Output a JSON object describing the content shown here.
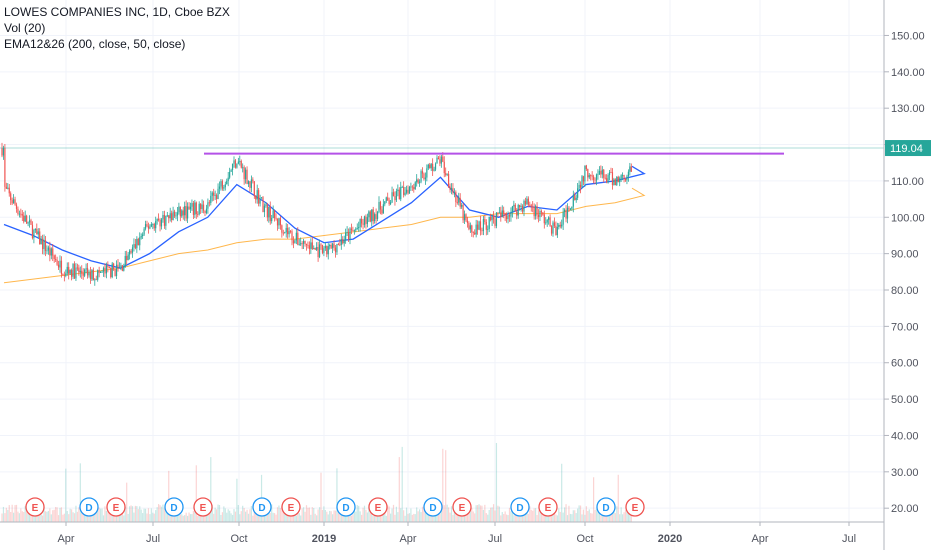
{
  "legend": {
    "symbol_line": "LOWES COMPANIES INC, 1D, Cboe BZX",
    "vol_line": "Vol (20)",
    "ema_line": "EMA12&26 (200, close, 50, close)"
  },
  "price_tag": "119.04",
  "colors": {
    "up": "#26a69a",
    "down": "#ef5350",
    "ema50": "#2962ff",
    "ema200": "#ff9800",
    "resistance": "#b452e8",
    "price_line": "#26a69a",
    "grid": "#f0f3fa",
    "event_E": "#ef5350",
    "event_D": "#2196f3"
  },
  "chart_data": {
    "type": "candlestick",
    "title": "LOWES COMPANIES INC, 1D, Cboe BZX",
    "y_ticks": [
      "150.00",
      "140.00",
      "130.00",
      "120.00",
      "110.00",
      "100.00",
      "90.00",
      "80.00",
      "70.00",
      "60.00",
      "50.00",
      "40.00",
      "30.00",
      "20.00"
    ],
    "ylim": [
      14,
      157
    ],
    "x_ticks": [
      "Apr",
      "Jul",
      "Oct",
      "2019",
      "Apr",
      "Jul",
      "Oct",
      "2020",
      "Apr",
      "Jul"
    ],
    "last_price": 119.04,
    "resistance_level": 117.5,
    "price_path": [
      {
        "x": "2018-01",
        "y": 108
      },
      {
        "x": "2018-02",
        "y": 96
      },
      {
        "x": "2018-03",
        "y": 86
      },
      {
        "x": "2018-04",
        "y": 84
      },
      {
        "x": "2018-05",
        "y": 86
      },
      {
        "x": "2018-06",
        "y": 98
      },
      {
        "x": "2018-07",
        "y": 101
      },
      {
        "x": "2018-08",
        "y": 103
      },
      {
        "x": "2018-09",
        "y": 116
      },
      {
        "x": "2018-10",
        "y": 102
      },
      {
        "x": "2018-11",
        "y": 94
      },
      {
        "x": "2018-12",
        "y": 90
      },
      {
        "x": "2019-01",
        "y": 96
      },
      {
        "x": "2019-02",
        "y": 103
      },
      {
        "x": "2019-03",
        "y": 109
      },
      {
        "x": "2019-04",
        "y": 116
      },
      {
        "x": "2019-05",
        "y": 96
      },
      {
        "x": "2019-06",
        "y": 100
      },
      {
        "x": "2019-07",
        "y": 104
      },
      {
        "x": "2019-08",
        "y": 96
      },
      {
        "x": "2019-09",
        "y": 113
      },
      {
        "x": "2019-10",
        "y": 110
      },
      {
        "x": "2019-11",
        "y": 115
      },
      {
        "x": "2019-12",
        "y": 119
      }
    ],
    "series": [
      {
        "name": "EMA 50",
        "values": [
          98,
          95,
          91,
          88,
          86,
          90,
          96,
          100,
          109,
          104,
          97,
          93,
          94,
          99,
          104,
          111,
          102,
          100,
          103,
          102,
          109,
          110,
          112,
          114
        ]
      },
      {
        "name": "EMA 200",
        "values": [
          82,
          83,
          84,
          85,
          86,
          88,
          90,
          91,
          93,
          94,
          94,
          95,
          96,
          97,
          98,
          100,
          100,
          101,
          101,
          101,
          103,
          104,
          106,
          108
        ]
      }
    ],
    "events": [
      "E",
      "D",
      "E",
      "D",
      "E",
      "D",
      "E",
      "D",
      "E",
      "D",
      "E",
      "D",
      "E",
      "D",
      "E"
    ],
    "event_x": [
      "2018-02",
      "2018-04",
      "2018-05",
      "2018-07",
      "2018-08",
      "2018-10",
      "2018-11",
      "2019-01",
      "2019-02",
      "2019-04",
      "2019-05",
      "2019-07",
      "2019-08",
      "2019-10",
      "2019-11"
    ]
  }
}
